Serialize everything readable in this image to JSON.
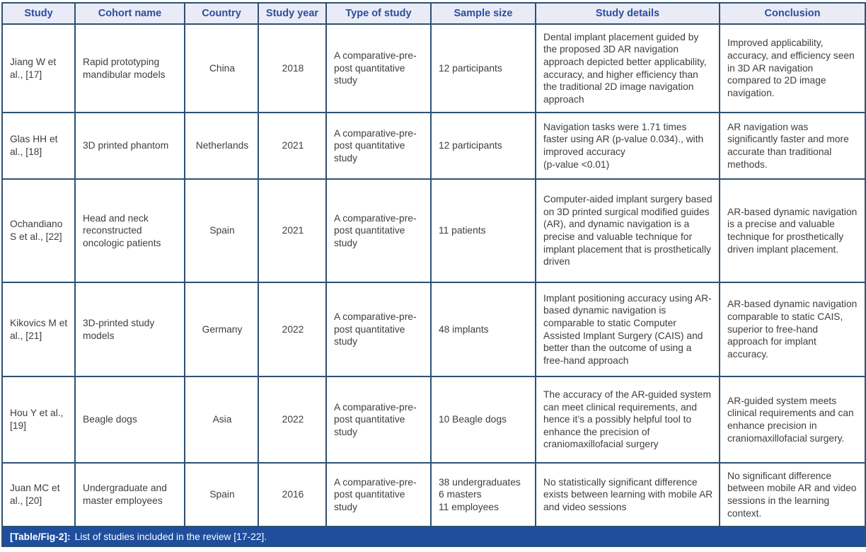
{
  "table": {
    "columns": [
      "Study",
      "Cohort name",
      "Country",
      "Study year",
      "Type of study",
      "Sample size",
      "Study details",
      "Conclusion"
    ],
    "rows": [
      [
        "Jiang W et al., [17]",
        "Rapid prototyping mandibular models",
        "China",
        "2018",
        "A comparative-pre-post quantitative study",
        "12 participants",
        "Dental implant placement guided by the proposed 3D AR navigation approach depicted better applicability, accuracy, and higher efficiency than the traditional 2D image navigation approach",
        "Improved applicability, accuracy, and efficiency seen in 3D AR navigation compared to 2D image navigation."
      ],
      [
        "Glas HH et al., [18]",
        "3D printed phantom",
        "Netherlands",
        "2021",
        "A comparative-pre-post quantitative study",
        "12 participants",
        "Navigation tasks were 1.71 times faster using AR (p-value 0.034)., with improved accuracy\n(p-value <0.01)",
        "AR navigation was significantly faster and more accurate than traditional methods."
      ],
      [
        "Ochandiano S et al., [22]",
        "Head and neck reconstructed oncologic patients",
        "Spain",
        "2021",
        "A comparative-pre-post quantitative study",
        "11 patients",
        "Computer-aided implant surgery based on 3D printed surgical modified guides (AR), and dynamic navigation is a precise and valuable technique for implant placement that is prosthetically driven",
        "AR-based dynamic navigation is a precise and valuable technique for prosthetically driven implant placement."
      ],
      [
        "Kikovics M et al., [21]",
        "3D-printed study models",
        "Germany",
        "2022",
        "A comparative-pre-post quantitative study",
        "48 implants",
        "Implant positioning accuracy using AR-based dynamic navigation is comparable to static Computer Assisted Implant Surgery (CAIS) and better than the outcome of using a free-hand approach",
        "AR-based dynamic navigation comparable to static CAIS, superior to free-hand approach for implant accuracy."
      ],
      [
        "Hou Y et al., [19]",
        "Beagle dogs",
        "Asia",
        "2022",
        "A comparative-pre-post quantitative study",
        "10 Beagle dogs",
        "The accuracy of the AR-guided system can meet clinical requirements, and hence it’s a possibly helpful tool to enhance the precision of craniomaxillofacial surgery",
        "AR-guided system meets clinical requirements and can enhance precision in craniomaxillofacial surgery."
      ],
      [
        "Juan MC et al., [20]",
        "Undergraduate and master employees",
        "Spain",
        "2016",
        "A comparative-pre-post quantitative study",
        "38 undergraduates\n6 masters\n11 employees",
        "No statistically significant difference exists between learning with mobile AR and video sessions",
        "No significant difference between mobile AR and video sessions in the learning context."
      ]
    ]
  },
  "caption": {
    "label": "[Table/Fig-2]:",
    "text": "List of studies included in the review [17-22]."
  },
  "colors": {
    "border": "#2d5174",
    "header_bg": "#e9ecf6",
    "header_text": "#2c4d9f",
    "caption_bg": "#1f4e9c",
    "caption_text": "#ffffff",
    "body_text": "#3e3e3e"
  }
}
